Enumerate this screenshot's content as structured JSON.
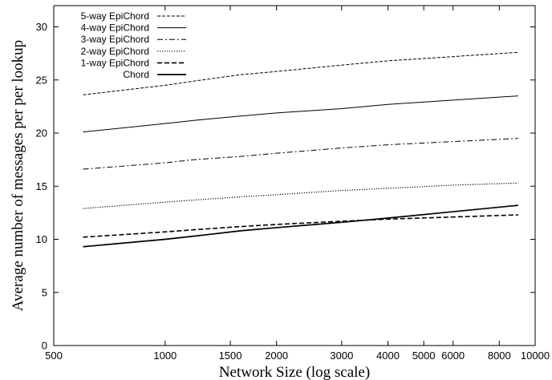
{
  "chart_data": {
    "type": "line",
    "title": "",
    "xlabel": "Network Size (log scale)",
    "ylabel": "Average number of messages per per lookup",
    "x_scale": "log",
    "xlim": [
      500,
      10000
    ],
    "ylim": [
      0,
      32
    ],
    "x_ticks": [
      500,
      1000,
      1500,
      2000,
      3000,
      4000,
      5000,
      6000,
      8000,
      10000
    ],
    "y_ticks": [
      0,
      5,
      10,
      15,
      20,
      25,
      30
    ],
    "grid": false,
    "legend_position": "top-left",
    "x": [
      600,
      1000,
      1200,
      1600,
      2000,
      3000,
      4000,
      6000,
      9000
    ],
    "series": [
      {
        "name": "5-way EpiChord",
        "dash": "dashed-short",
        "values": [
          23.6,
          24.5,
          24.9,
          25.5,
          25.8,
          26.4,
          26.8,
          27.2,
          27.6
        ]
      },
      {
        "name": "4-way EpiChord",
        "dash": "solid",
        "values": [
          20.1,
          20.9,
          21.2,
          21.6,
          21.9,
          22.3,
          22.7,
          23.1,
          23.5
        ]
      },
      {
        "name": "3-way EpiChord",
        "dash": "dash-dot",
        "values": [
          16.6,
          17.2,
          17.5,
          17.8,
          18.1,
          18.6,
          18.9,
          19.2,
          19.5
        ]
      },
      {
        "name": "2-way EpiChord",
        "dash": "dotted",
        "values": [
          12.9,
          13.5,
          13.7,
          14.0,
          14.2,
          14.6,
          14.8,
          15.1,
          15.3
        ]
      },
      {
        "name": "1-way EpiChord",
        "dash": "dashed-long",
        "values": [
          10.2,
          10.7,
          10.9,
          11.2,
          11.4,
          11.7,
          11.9,
          12.1,
          12.3
        ]
      },
      {
        "name": "Chord",
        "dash": "solid-thick",
        "values": [
          9.3,
          10.0,
          10.3,
          10.8,
          11.1,
          11.6,
          12.0,
          12.6,
          13.2
        ]
      }
    ]
  }
}
